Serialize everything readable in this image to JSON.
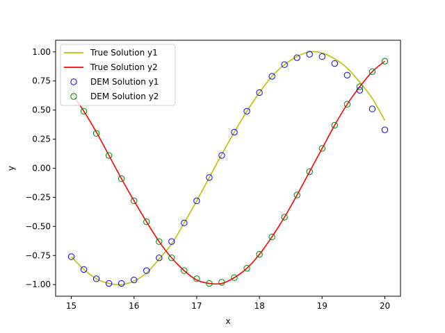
{
  "chart_data": {
    "type": "scatter",
    "title": "",
    "xlabel": "x",
    "ylabel": "y",
    "xlim": [
      14.75,
      20.25
    ],
    "ylim": [
      -1.1,
      1.1
    ],
    "xticks": [
      15,
      16,
      17,
      18,
      19,
      20
    ],
    "xtick_labels": [
      "15",
      "16",
      "17",
      "18",
      "19",
      "20"
    ],
    "yticks": [
      -1.0,
      -0.75,
      -0.5,
      -0.25,
      0.0,
      0.25,
      0.5,
      0.75,
      1.0
    ],
    "ytick_labels": [
      "−1.00",
      "−0.75",
      "−0.50",
      "−0.25",
      "0.00",
      "0.25",
      "0.50",
      "0.75",
      "1.00"
    ],
    "grid": false,
    "legend_position": "top-left",
    "colors": {
      "true_y1": "#bfbf00",
      "true_y2": "#ff0000",
      "dem_y1": "#0000ff",
      "dem_y2": "#008000"
    },
    "lines": [
      {
        "name": "True Solution y1",
        "x": [
          15.0,
          15.2,
          15.4,
          15.6,
          15.8,
          16.0,
          16.2,
          16.4,
          16.6,
          16.8,
          17.0,
          17.2,
          17.4,
          17.6,
          17.8,
          18.0,
          18.2,
          18.4,
          18.6,
          18.8,
          19.0,
          19.2,
          19.4,
          19.6,
          19.8,
          20.0
        ],
        "y": [
          -0.76,
          -0.87,
          -0.95,
          -0.99,
          -1.0,
          -0.97,
          -0.9,
          -0.78,
          -0.65,
          -0.47,
          -0.28,
          -0.08,
          0.12,
          0.31,
          0.49,
          0.65,
          0.79,
          0.89,
          0.96,
          1.0,
          0.99,
          0.94,
          0.86,
          0.74,
          0.6,
          0.41
        ]
      },
      {
        "name": "True Solution y2",
        "x": [
          15.0,
          15.2,
          15.4,
          15.6,
          15.8,
          16.0,
          16.2,
          16.4,
          16.6,
          16.8,
          17.0,
          17.2,
          17.4,
          17.6,
          17.8,
          18.0,
          18.2,
          18.4,
          18.6,
          18.8,
          19.0,
          19.2,
          19.4,
          19.6,
          19.8,
          20.0
        ],
        "y": [
          0.65,
          0.49,
          0.31,
          0.11,
          -0.09,
          -0.28,
          -0.46,
          -0.63,
          -0.77,
          -0.88,
          -0.96,
          -0.99,
          -0.99,
          -0.94,
          -0.86,
          -0.74,
          -0.59,
          -0.42,
          -0.23,
          -0.03,
          0.17,
          0.37,
          0.55,
          0.7,
          0.83,
          0.92
        ]
      }
    ],
    "series": [
      {
        "name": "DEM Solution y1",
        "x": [
          15.0,
          15.2,
          15.4,
          15.6,
          15.8,
          16.0,
          16.2,
          16.4,
          16.6,
          16.8,
          17.0,
          17.2,
          17.4,
          17.6,
          17.8,
          18.0,
          18.2,
          18.4,
          18.6,
          18.8,
          19.0,
          19.2,
          19.4,
          19.6,
          19.8,
          20.0
        ],
        "y": [
          -0.76,
          -0.87,
          -0.95,
          -0.99,
          -0.99,
          -0.96,
          -0.88,
          -0.77,
          -0.63,
          -0.47,
          -0.28,
          -0.08,
          0.11,
          0.31,
          0.49,
          0.65,
          0.79,
          0.89,
          0.95,
          0.98,
          0.96,
          0.9,
          0.8,
          0.67,
          0.51,
          0.33
        ]
      },
      {
        "name": "DEM Solution y2",
        "x": [
          15.0,
          15.2,
          15.4,
          15.6,
          15.8,
          16.0,
          16.2,
          16.4,
          16.6,
          16.8,
          17.0,
          17.2,
          17.4,
          17.6,
          17.8,
          18.0,
          18.2,
          18.4,
          18.6,
          18.8,
          19.0,
          19.2,
          19.4,
          19.6,
          19.8,
          20.0
        ],
        "y": [
          0.65,
          0.49,
          0.3,
          0.11,
          -0.09,
          -0.28,
          -0.46,
          -0.63,
          -0.77,
          -0.88,
          -0.95,
          -0.99,
          -0.98,
          -0.94,
          -0.86,
          -0.74,
          -0.59,
          -0.42,
          -0.23,
          -0.03,
          0.17,
          0.37,
          0.55,
          0.7,
          0.83,
          0.92
        ]
      }
    ]
  }
}
